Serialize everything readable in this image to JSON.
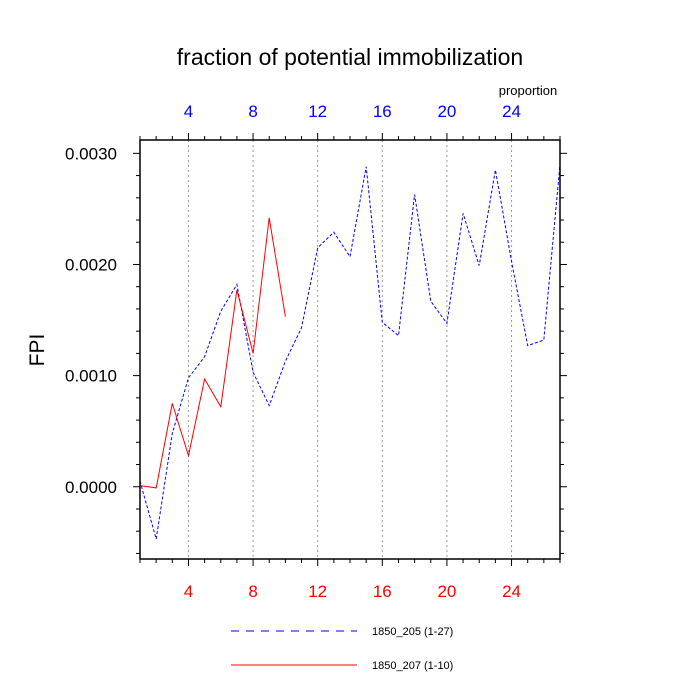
{
  "chart_data": {
    "type": "line",
    "title": "fraction of potential immobilization",
    "ylabel": "FPI",
    "top_axis_label": "proportion",
    "xlim": [
      1,
      27
    ],
    "ylim": [
      -0.00065,
      0.00312
    ],
    "x_ticks": [
      4,
      8,
      12,
      16,
      20,
      24
    ],
    "y_ticks": [
      0.0,
      0.001,
      0.002,
      0.003
    ],
    "y_tick_labels": [
      "0.0000",
      "0.0010",
      "0.0020",
      "0.0030"
    ],
    "grid": "vertical dotted at x ticks",
    "top_tick_color": "#0000ff",
    "bottom_tick_color": "#ff0000",
    "series": [
      {
        "name": "1850_205 (1-27)",
        "color": "#0000ff",
        "style": "dashed",
        "x": [
          1,
          2,
          3,
          4,
          5,
          6,
          7,
          8,
          9,
          10,
          11,
          12,
          13,
          14,
          15,
          16,
          17,
          18,
          19,
          20,
          21,
          22,
          23,
          24,
          25,
          26,
          27
        ],
        "values": [
          5e-05,
          -0.00047,
          0.00048,
          0.00098,
          0.00117,
          0.00158,
          0.00182,
          0.00103,
          0.00073,
          0.00113,
          0.00143,
          0.00215,
          0.00229,
          0.00207,
          0.00288,
          0.00148,
          0.00136,
          0.00263,
          0.00167,
          0.00147,
          0.00246,
          0.00199,
          0.00285,
          0.00203,
          0.00127,
          0.00132,
          0.0029
        ]
      },
      {
        "name": "1850_207 (1-10)",
        "color": "#ff0000",
        "style": "solid",
        "x": [
          1,
          2,
          3,
          4,
          5,
          6,
          7,
          8,
          9,
          10
        ],
        "values": [
          1e-05,
          -1e-05,
          0.00075,
          0.00028,
          0.00097,
          0.00072,
          0.00177,
          0.0012,
          0.00242,
          0.00153
        ]
      }
    ]
  }
}
